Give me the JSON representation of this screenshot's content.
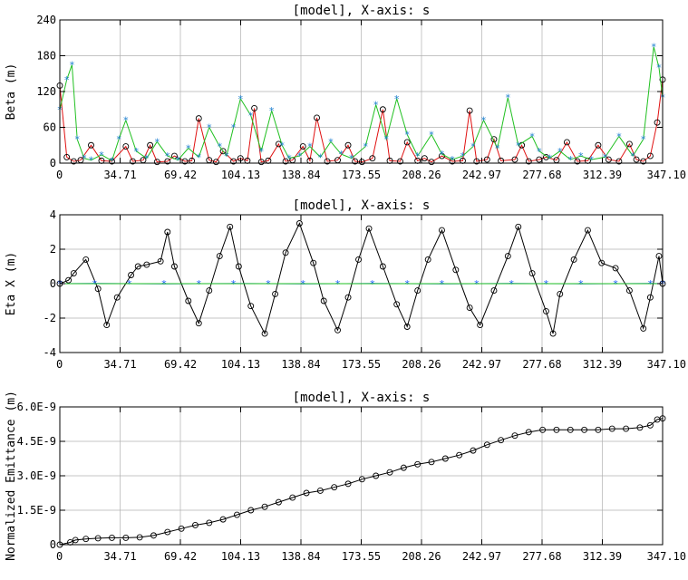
{
  "chart_data": [
    {
      "type": "line",
      "title": "[model],  X-axis: s",
      "xlabel": "",
      "ylabel": "Beta (m)",
      "xlim": [
        0,
        347.1
      ],
      "ylim": [
        0,
        240
      ],
      "x_ticks": [
        "0",
        "34.71",
        "69.42",
        "104.13",
        "138.84",
        "173.55",
        "208.26",
        "242.97",
        "277.68",
        "312.39",
        "347.10"
      ],
      "y_ticks": [
        "0",
        "60",
        "120",
        "180",
        "240"
      ],
      "grid": true,
      "series": [
        {
          "color": "#e01010",
          "marker": "circle",
          "x": [
            0,
            4,
            8,
            12,
            18,
            24,
            30,
            38,
            42,
            48,
            52,
            56,
            62,
            66,
            72,
            76,
            80,
            86,
            90,
            94,
            100,
            104,
            108,
            112,
            116,
            120,
            126,
            130,
            134,
            140,
            144,
            148,
            154,
            160,
            166,
            170,
            174,
            180,
            186,
            190,
            196,
            200,
            206,
            210,
            214,
            220,
            226,
            232,
            236,
            240,
            246,
            250,
            254,
            262,
            266,
            270,
            276,
            280,
            286,
            292,
            298,
            304,
            310,
            316,
            322,
            328,
            332,
            336,
            340,
            344,
            347.1
          ],
          "y": [
            130,
            10,
            3,
            5,
            30,
            4,
            3,
            28,
            3,
            5,
            30,
            2,
            3,
            12,
            3,
            4,
            75,
            5,
            2,
            20,
            3,
            8,
            4,
            92,
            2,
            4,
            32,
            3,
            5,
            28,
            4,
            76,
            3,
            5,
            30,
            3,
            2,
            8,
            90,
            4,
            3,
            35,
            4,
            8,
            2,
            12,
            3,
            4,
            88,
            3,
            6,
            40,
            4,
            6,
            30,
            3,
            6,
            10,
            5,
            35,
            3,
            4,
            30,
            6,
            3,
            32,
            6,
            3,
            12,
            68,
            140
          ]
        },
        {
          "color": "#20c020",
          "marker": "star",
          "x": [
            0,
            4,
            7,
            10,
            14,
            18,
            24,
            30,
            34,
            38,
            44,
            50,
            56,
            62,
            68,
            74,
            80,
            86,
            92,
            96,
            100,
            104,
            110,
            116,
            122,
            128,
            132,
            138,
            144,
            150,
            156,
            162,
            168,
            176,
            182,
            188,
            194,
            200,
            206,
            214,
            220,
            226,
            232,
            238,
            244,
            252,
            258,
            264,
            272,
            276,
            282,
            288,
            294,
            300,
            306,
            314,
            322,
            330,
            336,
            342,
            345,
            347.1
          ],
          "y": [
            90,
            140,
            165,
            40,
            8,
            5,
            14,
            4,
            40,
            72,
            20,
            8,
            36,
            12,
            5,
            25,
            10,
            60,
            28,
            12,
            60,
            108,
            80,
            20,
            88,
            30,
            8,
            12,
            28,
            10,
            36,
            15,
            8,
            28,
            98,
            40,
            108,
            48,
            12,
            48,
            15,
            6,
            12,
            28,
            72,
            25,
            110,
            30,
            45,
            20,
            8,
            20,
            6,
            12,
            6,
            10,
            45,
            12,
            40,
            195,
            160,
            110
          ]
        }
      ]
    },
    {
      "type": "line",
      "title": "[model],  X-axis: s",
      "xlabel": "",
      "ylabel": "Eta X (m)",
      "xlim": [
        0,
        347.1
      ],
      "ylim": [
        -4,
        4
      ],
      "x_ticks": [
        "0",
        "34.71",
        "69.42",
        "104.13",
        "138.84",
        "173.55",
        "208.26",
        "242.97",
        "277.68",
        "312.39",
        "347.10"
      ],
      "y_ticks": [
        "-4",
        "-2",
        "0",
        "2",
        "4"
      ],
      "grid": true,
      "series": [
        {
          "color": "#000000",
          "marker": "circle",
          "x": [
            0,
            5,
            8,
            15,
            22,
            27,
            33,
            41,
            45,
            50,
            58,
            62,
            66,
            74,
            80,
            86,
            92,
            98,
            103,
            110,
            118,
            124,
            130,
            138,
            146,
            152,
            160,
            166,
            172,
            178,
            186,
            194,
            200,
            206,
            212,
            220,
            228,
            236,
            242,
            250,
            258,
            264,
            272,
            280,
            284,
            288,
            296,
            304,
            312,
            320,
            328,
            336,
            340,
            345,
            347.1
          ],
          "y": [
            0,
            0.2,
            0.6,
            1.4,
            -0.3,
            -2.4,
            -0.8,
            0.5,
            1.0,
            1.1,
            1.3,
            3.0,
            1.0,
            -1.0,
            -2.3,
            -0.4,
            1.6,
            3.3,
            1.0,
            -1.3,
            -2.9,
            -0.6,
            1.8,
            3.5,
            1.2,
            -1.0,
            -2.7,
            -0.8,
            1.4,
            3.2,
            1.0,
            -1.2,
            -2.5,
            -0.4,
            1.4,
            3.1,
            0.8,
            -1.4,
            -2.4,
            -0.4,
            1.6,
            3.3,
            0.6,
            -1.6,
            -2.9,
            -0.6,
            1.4,
            3.1,
            1.2,
            0.9,
            -0.4,
            -2.6,
            -0.8,
            1.6,
            0
          ]
        },
        {
          "color": "#2060ff",
          "marker": "star",
          "x": [
            0,
            20,
            40,
            60,
            80,
            100,
            120,
            140,
            160,
            180,
            200,
            220,
            240,
            260,
            280,
            300,
            320,
            340,
            347.1
          ],
          "y": [
            0,
            0.01,
            0,
            -0.01,
            0,
            0.01,
            0,
            -0.01,
            0,
            0.01,
            0,
            -0.01,
            0,
            0.01,
            0,
            -0.01,
            0,
            0.01,
            0
          ]
        },
        {
          "color": "#20c020",
          "marker": "none",
          "x": [
            0,
            347.1
          ],
          "y": [
            0,
            0
          ]
        }
      ]
    },
    {
      "type": "line",
      "title": "[model],  X-axis: s",
      "xlabel": "",
      "ylabel": "Normalized Emittance (m)",
      "xlim": [
        0,
        347.1
      ],
      "ylim": [
        0,
        6e-09
      ],
      "x_ticks": [
        "0",
        "34.71",
        "69.42",
        "104.13",
        "138.84",
        "173.55",
        "208.26",
        "242.97",
        "277.68",
        "312.39",
        "347.10"
      ],
      "y_ticks": [
        "0",
        "1.5E-9",
        "3.0E-9",
        "4.5E-9",
        "6.0E-9"
      ],
      "grid": true,
      "series": [
        {
          "color": "#000000",
          "marker": "circle",
          "x": [
            0,
            6,
            9,
            15,
            22,
            30,
            38,
            46,
            54,
            62,
            70,
            78,
            86,
            94,
            102,
            110,
            118,
            126,
            134,
            142,
            150,
            158,
            166,
            174,
            182,
            190,
            198,
            206,
            214,
            222,
            230,
            238,
            246,
            254,
            262,
            270,
            278,
            286,
            294,
            302,
            310,
            318,
            326,
            334,
            340,
            344,
            347.1
          ],
          "y": [
            0,
            1e-10,
            2e-10,
            2.5e-10,
            2.8e-10,
            3e-10,
            3e-10,
            3.2e-10,
            4e-10,
            5.5e-10,
            7e-10,
            8.5e-10,
            9.5e-10,
            1.1e-09,
            1.3e-09,
            1.5e-09,
            1.65e-09,
            1.85e-09,
            2.05e-09,
            2.25e-09,
            2.35e-09,
            2.5e-09,
            2.65e-09,
            2.85e-09,
            3e-09,
            3.15e-09,
            3.35e-09,
            3.5e-09,
            3.6e-09,
            3.75e-09,
            3.9e-09,
            4.1e-09,
            4.35e-09,
            4.55e-09,
            4.75e-09,
            4.9e-09,
            5e-09,
            5e-09,
            5e-09,
            5e-09,
            5e-09,
            5.05e-09,
            5.05e-09,
            5.1e-09,
            5.2e-09,
            5.45e-09,
            5.5e-09
          ]
        }
      ]
    }
  ]
}
